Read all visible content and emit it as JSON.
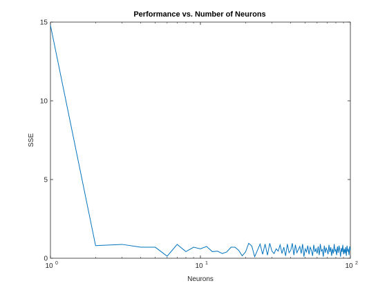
{
  "chart_data": {
    "type": "line",
    "title": "Performance vs. Number of Neurons",
    "xlabel": "Neurons",
    "ylabel": "SSE",
    "xscale": "log",
    "xlim": [
      1,
      100
    ],
    "ylim": [
      0,
      15
    ],
    "grid": false,
    "box": true,
    "line_color": "#0072BD",
    "yticks": [
      {
        "value": 0,
        "label": "0"
      },
      {
        "value": 5,
        "label": "5"
      },
      {
        "value": 10,
        "label": "10"
      },
      {
        "value": 15,
        "label": "15"
      }
    ],
    "xticks": [
      {
        "value": 1,
        "label": "10",
        "exp": "0"
      },
      {
        "value": 10,
        "label": "10",
        "exp": "1"
      },
      {
        "value": 100,
        "label": "10",
        "exp": "2"
      }
    ],
    "series": [
      {
        "x": [
          1,
          2,
          3,
          4,
          5,
          6,
          7,
          8,
          9,
          10,
          11,
          12,
          13,
          14,
          15,
          16,
          17,
          18,
          19,
          20,
          21,
          22,
          23,
          24,
          25,
          26,
          27,
          28,
          29,
          30,
          31,
          32,
          33,
          34,
          35,
          36,
          37,
          38,
          39,
          40,
          41,
          42,
          43,
          44,
          45,
          46,
          47,
          48,
          49,
          50,
          51,
          52,
          53,
          54,
          55,
          56,
          57,
          58,
          59,
          60,
          61,
          62,
          63,
          64,
          65,
          66,
          67,
          68,
          69,
          70,
          71,
          72,
          73,
          74,
          75,
          76,
          77,
          78,
          79,
          80,
          81,
          82,
          83,
          84,
          85,
          86,
          87,
          88,
          89,
          90,
          91,
          92,
          93,
          94,
          95,
          96,
          97,
          98,
          99,
          100
        ],
        "y": [
          14.8,
          0.8,
          0.88,
          0.7,
          0.7,
          0.13,
          0.88,
          0.42,
          0.7,
          0.6,
          0.75,
          0.42,
          0.45,
          0.3,
          0.4,
          0.7,
          0.7,
          0.5,
          0.15,
          0.4,
          0.95,
          0.78,
          0.1,
          0.5,
          0.9,
          0.25,
          0.9,
          0.2,
          0.95,
          0.45,
          0.3,
          0.6,
          0.45,
          0.85,
          0.3,
          0.7,
          0.15,
          0.9,
          0.35,
          0.5,
          0.95,
          0.2,
          0.85,
          0.35,
          0.55,
          0.75,
          0.3,
          0.9,
          0.1,
          0.6,
          0.4,
          0.8,
          0.25,
          0.7,
          0.5,
          0.15,
          0.85,
          0.4,
          0.6,
          0.3,
          0.75,
          0.2,
          0.9,
          0.45,
          0.55,
          0.1,
          0.8,
          0.35,
          0.65,
          0.5,
          0.25,
          0.85,
          0.4,
          0.7,
          0.15,
          0.6,
          0.3,
          0.9,
          0.45,
          0.55,
          0.2,
          0.75,
          0.35,
          0.8,
          0.5,
          0.1,
          0.65,
          0.4,
          0.85,
          0.25,
          0.6,
          0.3,
          0.7,
          0.15,
          0.8,
          0.45,
          0.55,
          0.2,
          0.75,
          0.5
        ]
      }
    ]
  }
}
